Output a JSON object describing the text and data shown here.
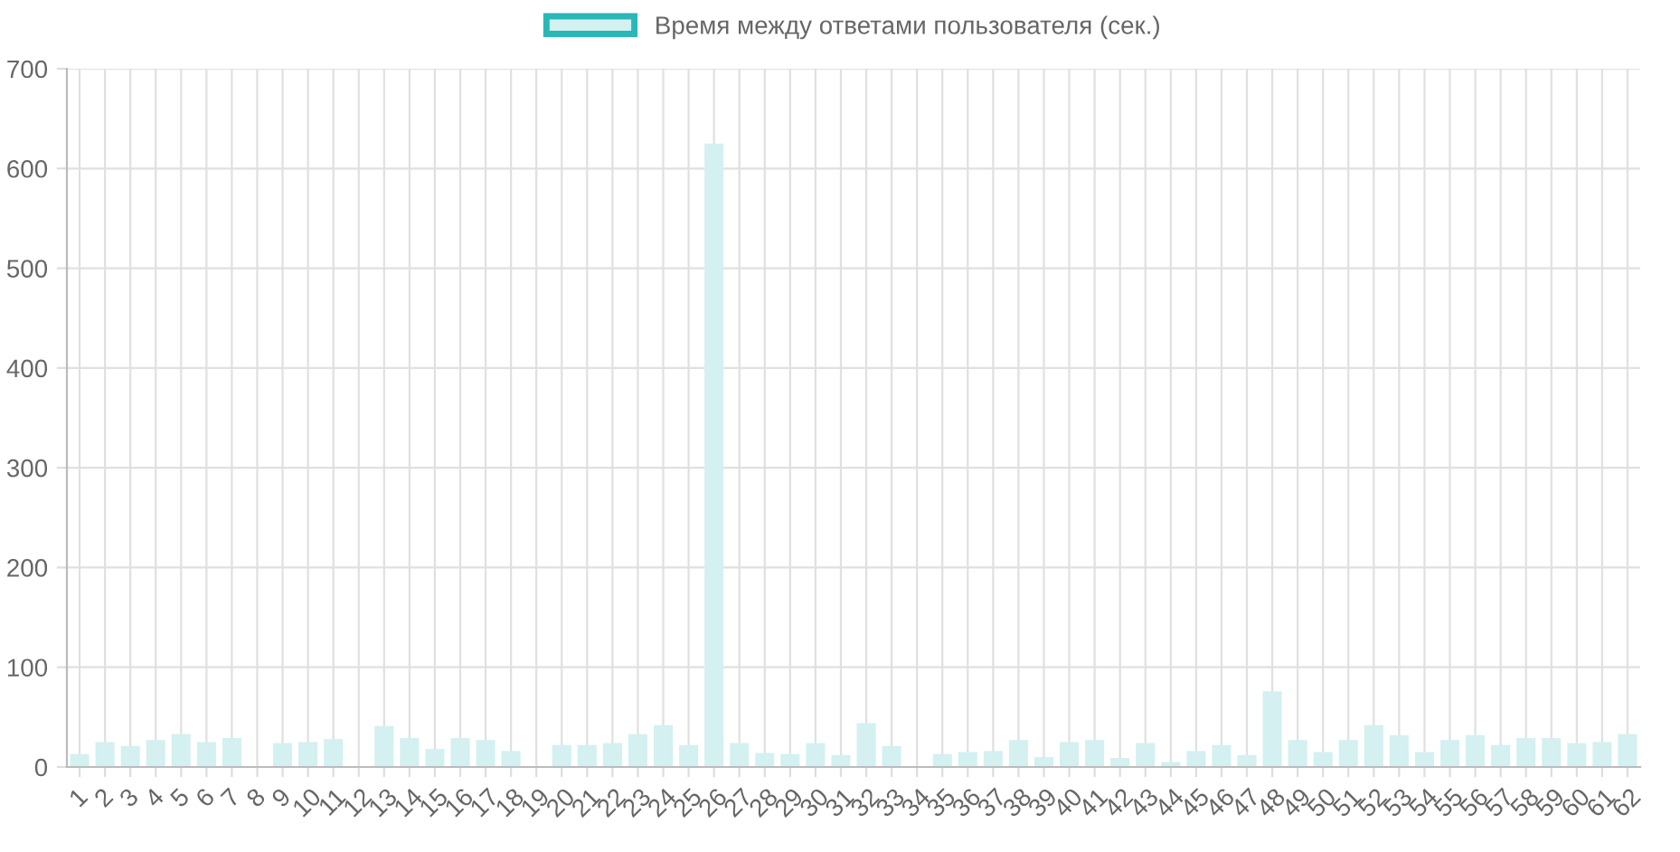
{
  "chart_data": {
    "type": "bar",
    "categories": [
      "1",
      "2",
      "3",
      "4",
      "5",
      "6",
      "7",
      "8",
      "9",
      "10",
      "11",
      "12",
      "13",
      "14",
      "15",
      "16",
      "17",
      "18",
      "19",
      "20",
      "21",
      "22",
      "23",
      "24",
      "25",
      "26",
      "27",
      "28",
      "29",
      "30",
      "31",
      "32",
      "33",
      "34",
      "35",
      "36",
      "37",
      "38",
      "39",
      "40",
      "41",
      "42",
      "43",
      "44",
      "45",
      "46",
      "47",
      "48",
      "49",
      "50",
      "51",
      "52",
      "53",
      "54",
      "55",
      "56",
      "57",
      "58",
      "59",
      "60",
      "61",
      "62"
    ],
    "series": [
      {
        "name": "Время между ответами пользователя (сек.)",
        "color": "#d4f0f1",
        "values": [
          13,
          25,
          21,
          27,
          33,
          25,
          29,
          0,
          24,
          25,
          28,
          0,
          41,
          29,
          18,
          29,
          27,
          16,
          0,
          22,
          22,
          24,
          33,
          42,
          22,
          625,
          24,
          14,
          13,
          24,
          12,
          44,
          21,
          1,
          13,
          15,
          16,
          27,
          10,
          25,
          27,
          9,
          24,
          5,
          16,
          22,
          12,
          76,
          27,
          15,
          27,
          42,
          32,
          15,
          27,
          32,
          22,
          29,
          29,
          24,
          25,
          33
        ]
      }
    ],
    "ylim": [
      0,
      700
    ],
    "yticks": [
      0,
      100,
      200,
      300,
      400,
      500,
      600,
      700
    ],
    "grid": true,
    "legend": "top"
  }
}
